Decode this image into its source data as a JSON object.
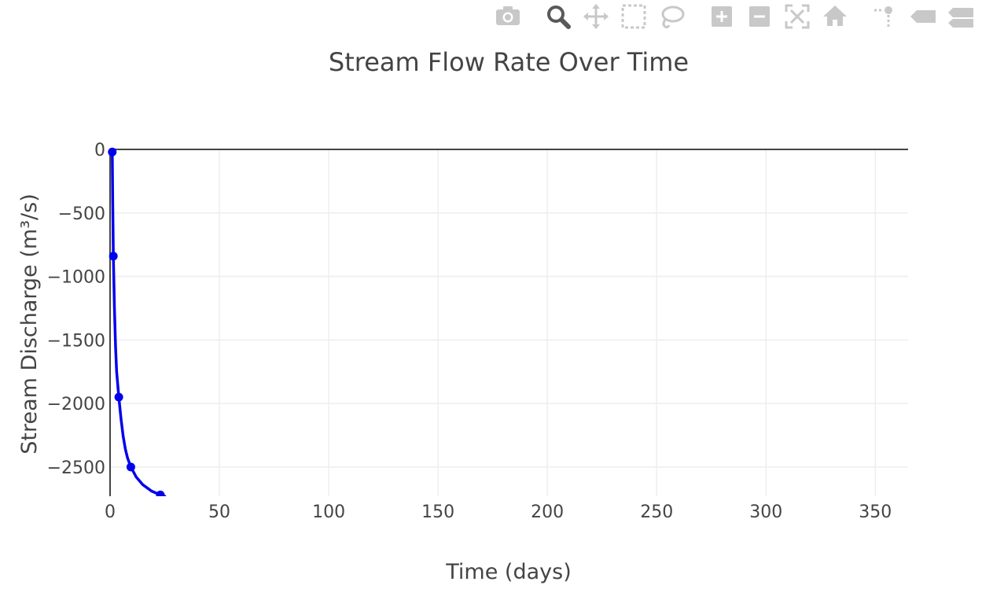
{
  "modebar": {
    "buttons": [
      {
        "name": "camera-icon",
        "label": "Download plot as a png"
      },
      {
        "name": "zoom-icon",
        "label": "Zoom",
        "active": true
      },
      {
        "name": "pan-icon",
        "label": "Pan"
      },
      {
        "name": "box-select-icon",
        "label": "Box Select"
      },
      {
        "name": "lasso-select-icon",
        "label": "Lasso Select"
      },
      {
        "name": "zoom-in-icon",
        "label": "Zoom in"
      },
      {
        "name": "zoom-out-icon",
        "label": "Zoom out"
      },
      {
        "name": "autoscale-icon",
        "label": "Autoscale"
      },
      {
        "name": "reset-axes-icon",
        "label": "Reset axes"
      },
      {
        "name": "spike-lines-icon",
        "label": "Toggle Spike Lines"
      },
      {
        "name": "hover-closest-icon",
        "label": "Show closest data on hover"
      },
      {
        "name": "hover-compare-icon",
        "label": "Compare data on hover"
      }
    ],
    "icon_color": "#c8c8c8",
    "active_color": "#595959"
  },
  "chart_data": {
    "type": "line",
    "title": "Stream Flow Rate Over Time",
    "xlabel": "Time (days)",
    "ylabel": "Stream Discharge (m³/s)",
    "xlim": [
      0,
      365
    ],
    "ylim": [
      -2730,
      0
    ],
    "xticks": [
      0,
      50,
      100,
      150,
      200,
      250,
      300,
      350
    ],
    "yticks": [
      0,
      -500,
      -1000,
      -1500,
      -2000,
      -2500
    ],
    "ytick_labels": [
      "0",
      "−500",
      "−1000",
      "−1500",
      "−2000",
      "−2500"
    ],
    "grid": true,
    "line_color": "#0000ee",
    "series": [
      {
        "markers": [
          {
            "x": 1,
            "y": -20
          },
          {
            "x": 1.5,
            "y": -840
          },
          {
            "x": 4,
            "y": -1950
          },
          {
            "x": 9.5,
            "y": -2500
          },
          {
            "x": 23,
            "y": -2720
          }
        ],
        "curve": [
          {
            "x": 1,
            "y": -20
          },
          {
            "x": 1.2,
            "y": -400
          },
          {
            "x": 1.5,
            "y": -840
          },
          {
            "x": 2,
            "y": -1250
          },
          {
            "x": 2.5,
            "y": -1550
          },
          {
            "x": 3,
            "y": -1750
          },
          {
            "x": 4,
            "y": -1950
          },
          {
            "x": 5,
            "y": -2120
          },
          {
            "x": 6,
            "y": -2260
          },
          {
            "x": 7,
            "y": -2360
          },
          {
            "x": 8,
            "y": -2430
          },
          {
            "x": 9.5,
            "y": -2500
          },
          {
            "x": 12,
            "y": -2580
          },
          {
            "x": 15,
            "y": -2640
          },
          {
            "x": 19,
            "y": -2690
          },
          {
            "x": 23,
            "y": -2720
          },
          {
            "x": 25,
            "y": -2730
          }
        ]
      }
    ]
  }
}
